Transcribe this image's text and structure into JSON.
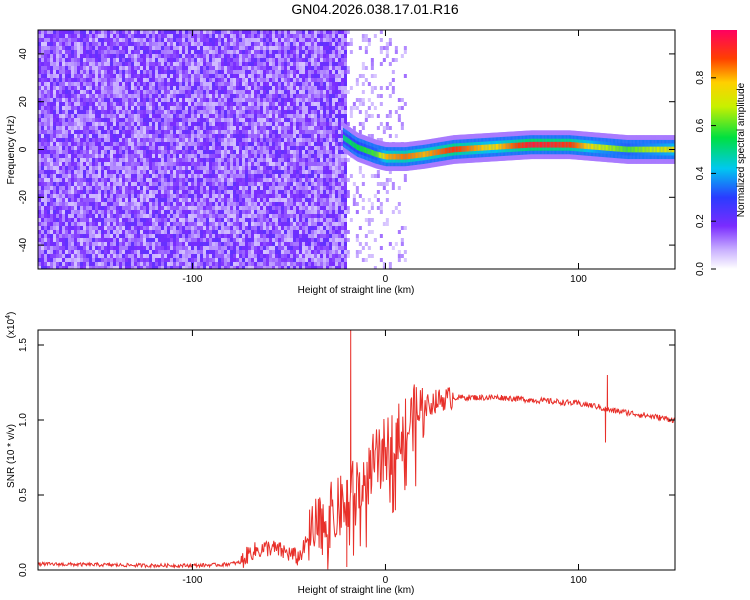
{
  "title": "GN04.2026.038.17.01.R16",
  "chart_data": [
    {
      "type": "heatmap",
      "xlabel": "Height of straight line (km)",
      "ylabel": "Frequency (Hz)",
      "xlim": [
        -180,
        150
      ],
      "ylim": [
        -50,
        50
      ],
      "xticks": [
        -100,
        0,
        100
      ],
      "yticks": [
        -40,
        -20,
        0,
        20,
        40
      ],
      "colorbar": {
        "label": "Normalized spectral amplitude",
        "range": [
          0.0,
          1.0
        ],
        "ticks": [
          0.0,
          0.2,
          0.4,
          0.6,
          0.8
        ]
      },
      "noise_region_end_km": -20,
      "scatter_region_end_km": 10,
      "ridge": {
        "x": [
          -22,
          -15,
          -5,
          0,
          10,
          20,
          35,
          55,
          75,
          95,
          110,
          125,
          150
        ],
        "freq_hz": [
          5,
          1,
          -2,
          -3,
          -3,
          -2,
          0,
          1,
          2,
          2,
          1,
          0,
          0
        ],
        "amplitude": [
          0.5,
          0.55,
          0.6,
          0.8,
          0.85,
          0.8,
          0.9,
          0.75,
          0.95,
          0.9,
          0.7,
          0.6,
          0.75
        ]
      }
    },
    {
      "type": "line",
      "xlabel": "Height of straight line (km)",
      "ylabel": "SNR (10 * v/v)",
      "y_exponent": "(x10",
      "y_exponent_sup": "4",
      "y_exponent_close": ")",
      "xlim": [
        -180,
        150
      ],
      "ylim": [
        0,
        1.6
      ],
      "xticks": [
        -100,
        0,
        100
      ],
      "yticks": [
        0.0,
        0.5,
        1.0,
        1.5
      ],
      "color": "#e8302a",
      "series": [
        {
          "name": "SNR",
          "x": [
            -180,
            -150,
            -120,
            -100,
            -85,
            -75,
            -70,
            -60,
            -55,
            -50,
            -45,
            -40,
            -35,
            -30,
            -25,
            -20,
            -18,
            -15,
            -10,
            -5,
            0,
            5,
            10,
            15,
            20,
            25,
            30,
            35,
            40,
            50,
            60,
            70,
            80,
            90,
            100,
            105,
            110,
            112,
            115,
            118,
            120,
            130,
            140,
            150
          ],
          "y": [
            0.04,
            0.035,
            0.03,
            0.03,
            0.035,
            0.05,
            0.12,
            0.15,
            0.13,
            0.11,
            0.08,
            0.2,
            0.28,
            0.35,
            0.4,
            0.45,
            0.5,
            0.55,
            0.62,
            0.72,
            0.8,
            0.88,
            0.95,
            1.02,
            1.08,
            1.12,
            1.14,
            1.15,
            1.15,
            1.15,
            1.15,
            1.14,
            1.13,
            1.12,
            1.11,
            1.1,
            1.09,
            1.08,
            1.07,
            1.06,
            1.06,
            1.04,
            1.02,
            1.0
          ]
        }
      ],
      "spikes": [
        {
          "x": -18,
          "y": 1.62
        },
        {
          "x": -20,
          "y": 0.02
        },
        {
          "x": 115,
          "y": 1.3
        },
        {
          "x": 114,
          "y": 0.85
        }
      ]
    }
  ]
}
